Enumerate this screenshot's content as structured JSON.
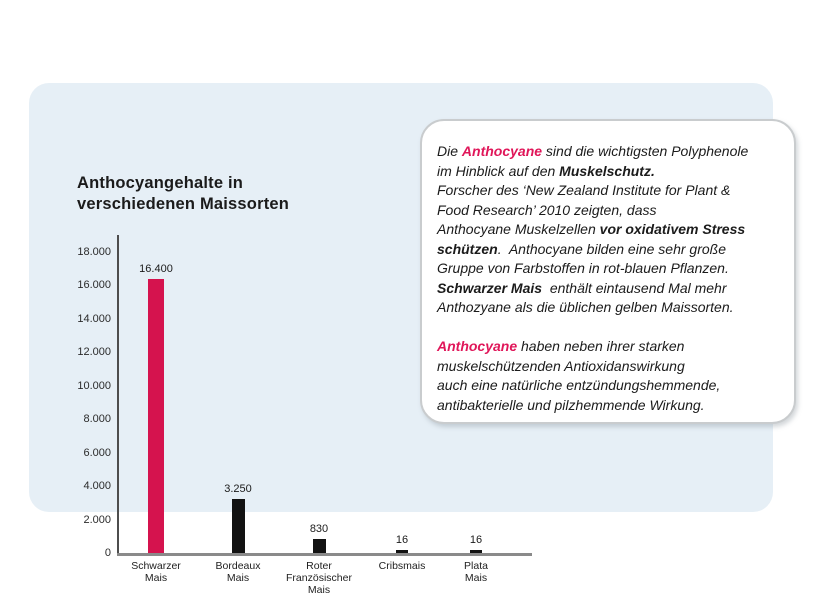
{
  "colors": {
    "page_bg": "#ffffff",
    "panel_bg": "#E6EFF6",
    "accent_pink_bar": "#D5134E",
    "accent_pink_text": "#E01659",
    "bar_black": "#121212",
    "axis_dark": "#4d4d4d",
    "axis_gray": "#8a8a8a",
    "text_dark": "#1b1b1b",
    "box_border": "#c9ccce",
    "box_bg": "#ffffff"
  },
  "panel": {
    "title": "Anthocyangehalte in\nverschiedenen Maissorten"
  },
  "chart_data": {
    "type": "bar",
    "title": "Anthocyangehalte in verschiedenen Maissorten",
    "categories": [
      "Schwarzer Mais",
      "Bordeaux Mais",
      "Roter Französischer Mais",
      "Cribsmais",
      "Plata Mais"
    ],
    "categories_display": [
      "Schwarzer\nMais",
      "Bordeaux\nMais",
      "Roter\nFranzösischer\nMais",
      "Cribsmais",
      "Plata\nMais"
    ],
    "values": [
      16400,
      3250,
      830,
      16,
      16
    ],
    "value_labels": [
      "16.400",
      "3.250",
      "830",
      "16",
      "16"
    ],
    "highlight_index": 0,
    "xlabel": "",
    "ylabel": "",
    "ylim": [
      0,
      18000
    ],
    "ytick_values": [
      0,
      2000,
      4000,
      6000,
      8000,
      10000,
      12000,
      14000,
      16000,
      18000
    ],
    "ytick_labels": [
      "0",
      "2.000",
      "4.000",
      "6.000",
      "8.000",
      "10.000",
      "12.000",
      "14.000",
      "16.000",
      "18.000"
    ],
    "grid": false,
    "legend": null
  },
  "infobox": {
    "lines": [
      [
        {
          "t": "Die ",
          "s": "n"
        },
        {
          "t": "Anthocyane",
          "s": "p"
        },
        {
          "t": " sind die wichtigsten Polyphenole",
          "s": "n"
        }
      ],
      [
        {
          "t": "im Hinblick auf den ",
          "s": "n"
        },
        {
          "t": "Muskelschutz.",
          "s": "b"
        }
      ],
      [
        {
          "t": "Forscher des ‘New Zealand Institute for Plant &",
          "s": "n"
        }
      ],
      [
        {
          "t": "Food Research’ 2010 zeigten, dass",
          "s": "n"
        }
      ],
      [
        {
          "t": "Anthocyane Muskelzellen ",
          "s": "n"
        },
        {
          "t": "vor oxidativem Stress",
          "s": "b"
        }
      ],
      [
        {
          "t": "schützen",
          "s": "b"
        },
        {
          "t": ".  Anthocyane bilden eine sehr große",
          "s": "n"
        }
      ],
      [
        {
          "t": "Gruppe von Farbstoffen in rot-blauen Pflanzen.",
          "s": "n"
        }
      ],
      [
        {
          "t": "Schwarzer Mais",
          "s": "b"
        },
        {
          "t": "  enthält eintausend Mal mehr",
          "s": "n"
        }
      ],
      [
        {
          "t": "Anthozyane als die üblichen gelben Maissorten.",
          "s": "n"
        }
      ],
      [],
      [
        {
          "t": "Anthocyane",
          "s": "p"
        },
        {
          "t": " haben neben ihrer starken",
          "s": "n"
        }
      ],
      [
        {
          "t": "muskelschützenden Antioxidanswirkung",
          "s": "n"
        }
      ],
      [
        {
          "t": "auch eine natürliche entzündungshemmende,",
          "s": "n"
        }
      ],
      [
        {
          "t": "antibakterielle und pilzhemmende Wirkung.",
          "s": "n"
        }
      ]
    ]
  }
}
